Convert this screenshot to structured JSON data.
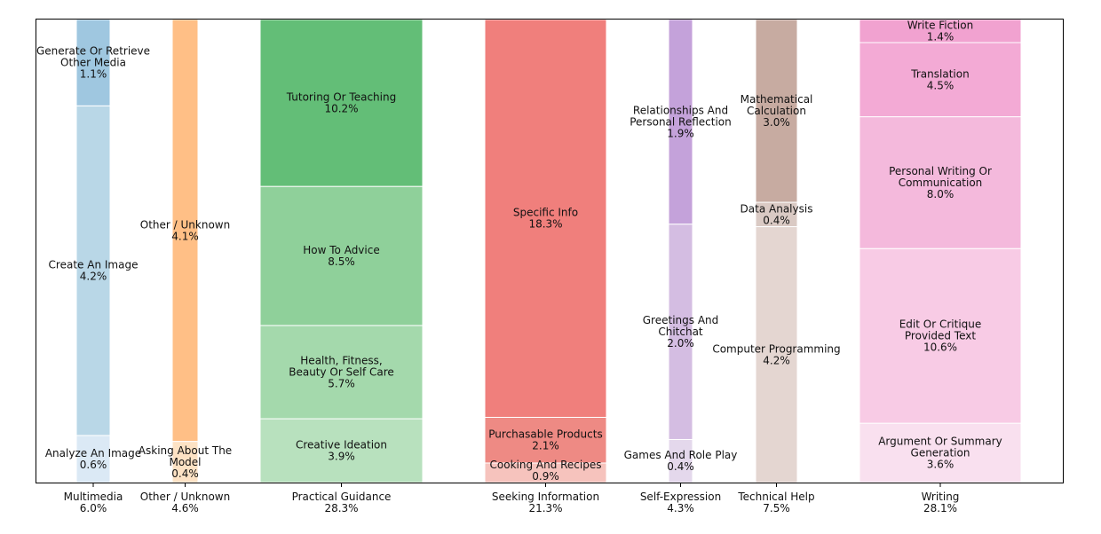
{
  "chart_data": {
    "type": "bar",
    "subtype": "stacked-mosaic",
    "ylim": [
      0,
      100
    ],
    "grid": false,
    "categories": [
      {
        "name": "Multimedia",
        "share": "6.0%",
        "color": "#a6cbe1",
        "segments": [
          {
            "label": [
              "Analyze An Image",
              "0.6%"
            ],
            "value": 0.6,
            "color": "#dbe9f5"
          },
          {
            "label": [
              "Create An Image",
              "4.2%"
            ],
            "value": 4.2,
            "color": "#b9d7e7"
          },
          {
            "label": [
              "Generate Or Retrieve",
              "Other Media",
              "1.1%"
            ],
            "value": 1.1,
            "color": "#9fc7e0"
          }
        ]
      },
      {
        "name": "Other / Unknown",
        "share": "4.6%",
        "color": "#ffbf80",
        "segments": [
          {
            "label": [
              "Asking About The",
              "Model",
              "0.4%"
            ],
            "value": 0.4,
            "color": "#fde2c4"
          },
          {
            "label": [
              "Other / Unknown",
              "4.1%"
            ],
            "value": 4.1,
            "color": "#ffbf86"
          }
        ]
      },
      {
        "name": "Practical Guidance",
        "share": "28.3%",
        "color": "#62bd76",
        "segments": [
          {
            "label": [
              "Creative Ideation",
              "3.9%"
            ],
            "value": 3.9,
            "color": "#b8e1be"
          },
          {
            "label": [
              "Health, Fitness,",
              "Beauty Or Self Care",
              "5.7%"
            ],
            "value": 5.7,
            "color": "#a4d9ac"
          },
          {
            "label": [
              "How To Advice",
              "8.5%"
            ],
            "value": 8.5,
            "color": "#8fd09a"
          },
          {
            "label": [
              "Tutoring Or Teaching",
              "10.2%"
            ],
            "value": 10.2,
            "color": "#63be77"
          }
        ]
      },
      {
        "name": "Seeking Information",
        "share": "21.3%",
        "color": "#f07f7c",
        "segments": [
          {
            "label": [
              "Cooking And Recipes",
              "0.9%"
            ],
            "value": 0.9,
            "color": "#f6c3bd"
          },
          {
            "label": [
              "Purchasable Products",
              "2.1%"
            ],
            "value": 2.1,
            "color": "#ee8a84"
          },
          {
            "label": [
              "Specific Info",
              "18.3%"
            ],
            "value": 18.3,
            "color": "#f07f7c"
          }
        ]
      },
      {
        "name": "Self-Expression",
        "share": "4.3%",
        "color": "#c3a1d9",
        "segments": [
          {
            "label": [
              "Games And Role Play",
              "0.4%"
            ],
            "value": 0.4,
            "color": "#e4d8ec"
          },
          {
            "label": [
              "Greetings And",
              "Chitchat",
              "2.0%"
            ],
            "value": 2.0,
            "color": "#d4bde2"
          },
          {
            "label": [
              "Relationships And",
              "Personal Reflection",
              "1.9%"
            ],
            "value": 1.9,
            "color": "#c4a2da"
          }
        ]
      },
      {
        "name": "Technical Help",
        "share": "7.5%",
        "color": "#c7aba1",
        "segments": [
          {
            "label": [
              "Computer Programming",
              "4.2%"
            ],
            "value": 4.2,
            "color": "#e4d6d1"
          },
          {
            "label": [
              "Data Analysis",
              "0.4%"
            ],
            "value": 0.4,
            "color": "#dacac4"
          },
          {
            "label": [
              "Mathematical",
              "Calculation",
              "3.0%"
            ],
            "value": 3.0,
            "color": "#c7aba1"
          }
        ]
      },
      {
        "name": "Writing",
        "share": "28.1%",
        "color": "#f1a8d3",
        "segments": [
          {
            "label": [
              "Argument Or Summary",
              "Generation",
              "3.6%"
            ],
            "value": 3.6,
            "color": "#f9e0ef"
          },
          {
            "label": [
              "Edit Or Critique",
              "Provided Text",
              "10.6%"
            ],
            "value": 10.6,
            "color": "#f8cbe5"
          },
          {
            "label": [
              "Personal Writing Or",
              "Communication",
              "8.0%"
            ],
            "value": 8.0,
            "color": "#f4b9dc"
          },
          {
            "label": [
              "Translation",
              "4.5%"
            ],
            "value": 4.5,
            "color": "#f3aad5"
          },
          {
            "label": [
              "Write Fiction",
              "1.4%"
            ],
            "value": 1.4,
            "color": "#f1a2d0"
          }
        ]
      }
    ]
  }
}
